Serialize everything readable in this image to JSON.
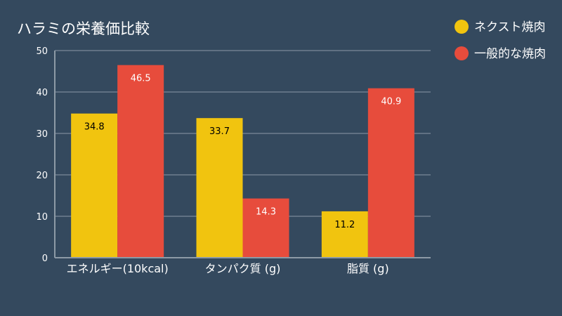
{
  "chart_data": {
    "type": "bar",
    "title": "ハラミの栄養価比較",
    "categories": [
      "エネルギー(10kcal)",
      "タンパク質 (g)",
      "脂質 (g)"
    ],
    "series": [
      {
        "name": "ネクスト焼肉",
        "color": "#f1c40f",
        "label_color": "#000000",
        "values": [
          34.8,
          33.7,
          11.2
        ]
      },
      {
        "name": "一般的な焼肉",
        "color": "#e74c3c",
        "label_color": "#ffffff",
        "values": [
          46.5,
          14.3,
          40.9
        ]
      }
    ],
    "ylim": [
      0,
      50
    ],
    "yticks": [
      0,
      10,
      20,
      30,
      40,
      50
    ],
    "grid": true,
    "legend_position": "top-right",
    "xlabel": "",
    "ylabel": ""
  }
}
